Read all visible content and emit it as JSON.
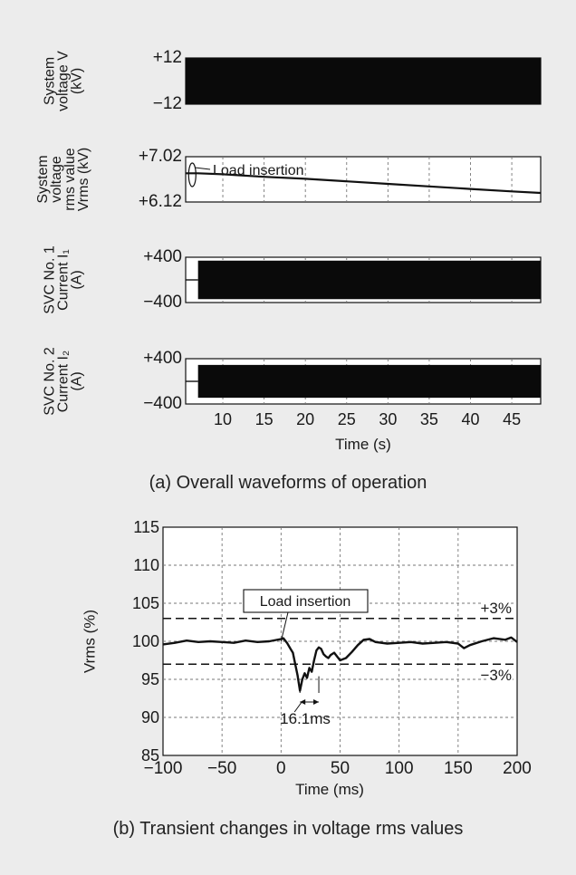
{
  "figure_a": {
    "caption": "(a) Overall waveforms of operation",
    "xlabel": "Time (s)",
    "x_ticks": [
      "10",
      "15",
      "20",
      "25",
      "30",
      "35",
      "40",
      "45"
    ]
  },
  "figure_b": {
    "caption": "(b) Transient changes in voltage rms values"
  },
  "chart_data": [
    {
      "type": "line",
      "title": "",
      "ylabel_lines": [
        "System",
        "voltage V",
        "(kV)"
      ],
      "yticks": [
        "+12",
        "−12"
      ],
      "ylim": [
        -12,
        12
      ],
      "xlim": [
        5.5,
        48.5
      ],
      "x_tick_values": [
        10,
        15,
        20,
        25,
        30,
        35,
        40,
        45
      ],
      "grid": "dashed-vertical",
      "series": [
        {
          "points": [
            [
              5.5,
              12
            ],
            [
              48.5,
              12
            ],
            [
              48.5,
              -12
            ],
            [
              5.5,
              -12
            ]
          ]
        }
      ]
    },
    {
      "type": "line",
      "title": "",
      "ylabel_lines": [
        "System",
        "voltage",
        "rms value",
        "Vrms (kV)"
      ],
      "yticks": [
        "+7.02",
        "+6.12"
      ],
      "ylim": [
        6.12,
        7.02
      ],
      "xlim": [
        5.5,
        48.5
      ],
      "x_tick_values": [
        10,
        15,
        20,
        25,
        30,
        35,
        40,
        45
      ],
      "grid": "dashed-vertical",
      "annotation": "Load insertion",
      "series": [
        {
          "x": [
            5.5,
            7,
            10,
            15,
            20,
            25,
            30,
            35,
            40,
            45,
            48.5
          ],
          "y": [
            6.69,
            6.69,
            6.67,
            6.62,
            6.58,
            6.53,
            6.48,
            6.43,
            6.38,
            6.33,
            6.3
          ]
        }
      ]
    },
    {
      "type": "line",
      "title": "",
      "ylabel_lines": [
        "SVC No. 1",
        "Current I₁",
        "(A)"
      ],
      "yticks": [
        "+400",
        "−400"
      ],
      "ylim": [
        -400,
        400
      ],
      "xlim": [
        5.5,
        48.5
      ],
      "x_tick_values": [
        10,
        15,
        20,
        25,
        30,
        35,
        40,
        45
      ],
      "grid": "dashed-vertical",
      "series": [
        {
          "x": [
            5.5,
            7.0,
            7.0,
            48.5
          ],
          "y": [
            0,
            0,
            340,
            340
          ]
        }
      ]
    },
    {
      "type": "line",
      "title": "",
      "ylabel_lines": [
        "SVC No. 2",
        "Current I₂",
        "(A)"
      ],
      "yticks": [
        "+400",
        "−400"
      ],
      "ylim": [
        -400,
        400
      ],
      "xlim": [
        5.5,
        48.5
      ],
      "x_tick_values": [
        10,
        15,
        20,
        25,
        30,
        35,
        40,
        45
      ],
      "grid": "dashed-vertical",
      "series": [
        {
          "x": [
            5.5,
            7.0,
            7.0,
            48.5
          ],
          "y": [
            0,
            0,
            290,
            290
          ]
        }
      ]
    },
    {
      "type": "line",
      "title": "",
      "xlabel": "Time (ms)",
      "ylabel": "Vrms (%)",
      "xlim": [
        -100,
        200
      ],
      "ylim": [
        85,
        115
      ],
      "x_ticks": [
        -100,
        -50,
        0,
        50,
        100,
        150,
        200
      ],
      "x_tick_labels": [
        "−100",
        "−50",
        "0",
        "50",
        "100",
        "150",
        "200"
      ],
      "y_ticks": [
        85,
        90,
        95,
        100,
        105,
        110,
        115
      ],
      "y_tick_labels": [
        "85",
        "90",
        "95",
        "100",
        "105",
        "110",
        "115"
      ],
      "grid": "dashed",
      "limit_lines": [
        {
          "y": 103,
          "label": "+3%"
        },
        {
          "y": 97,
          "label": "−3%"
        }
      ],
      "annotations": [
        {
          "text": "Load insertion",
          "x": 0,
          "y": 100
        },
        {
          "text": "16.1ms",
          "x_from": 16,
          "x_to": 32,
          "y": 93.5
        }
      ],
      "series": [
        {
          "x": [
            -100,
            -90,
            -80,
            -70,
            -60,
            -50,
            -40,
            -30,
            -20,
            -10,
            0,
            2,
            5,
            8,
            10,
            12,
            14,
            16,
            18,
            20,
            22,
            24,
            26,
            28,
            30,
            32,
            34,
            36,
            38,
            40,
            42,
            45,
            50,
            55,
            60,
            65,
            70,
            75,
            80,
            90,
            100,
            110,
            120,
            130,
            140,
            150,
            155,
            160,
            170,
            180,
            190,
            195,
            200
          ],
          "y": [
            99.6,
            99.8,
            100.1,
            99.9,
            100.0,
            99.9,
            99.8,
            100.1,
            99.9,
            100.0,
            100.3,
            100.4,
            99.8,
            99.0,
            98.5,
            97.0,
            95.5,
            93.5,
            95.0,
            95.8,
            95.2,
            96.5,
            96.0,
            97.5,
            98.8,
            99.2,
            99.0,
            98.3,
            98.0,
            97.8,
            98.2,
            98.5,
            97.5,
            97.8,
            98.6,
            99.5,
            100.2,
            100.3,
            99.9,
            99.7,
            99.8,
            99.9,
            99.7,
            99.8,
            99.9,
            99.7,
            99.1,
            99.5,
            100.0,
            100.4,
            100.2,
            100.5,
            99.9
          ]
        }
      ]
    }
  ]
}
